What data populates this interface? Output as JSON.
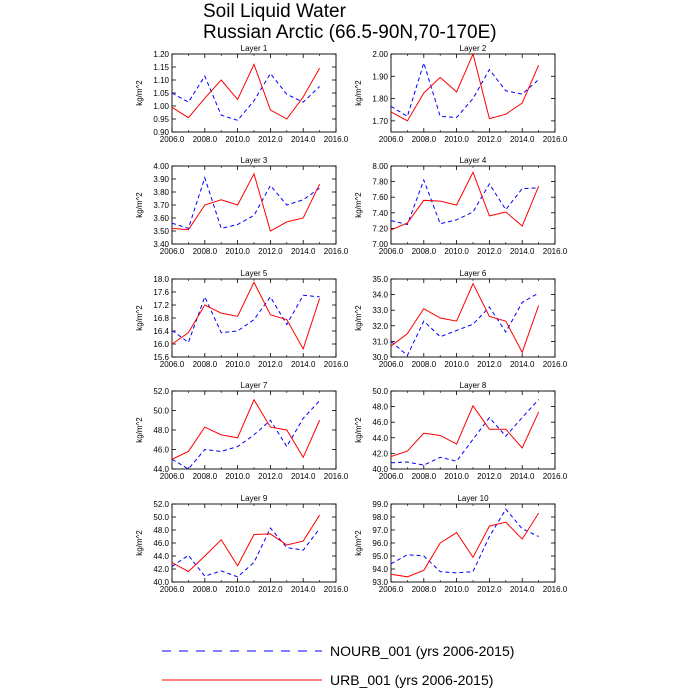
{
  "title": [
    "Soil Liquid Water",
    "Russian Arctic (66.5-90N,70-170E)"
  ],
  "legend": [
    {
      "label": "NOURB_001 (yrs 2006-2015)",
      "color": "#0000ff",
      "style": "dashed"
    },
    {
      "label": "URB_001 (yrs 2006-2015)",
      "color": "#ff0000",
      "style": "solid"
    }
  ],
  "chart_data": [
    {
      "type": "line",
      "title": "Layer 1",
      "ylabel": "kg/m^2",
      "x": [
        2006,
        2007,
        2008,
        2009,
        2010,
        2011,
        2012,
        2013,
        2014,
        2015
      ],
      "xlim": [
        2006,
        2016
      ],
      "xticks": [
        "2006.0",
        "2008.0",
        "2010.0",
        "2012.0",
        "2014.0",
        "2016.0"
      ],
      "ylim": [
        0.9,
        1.2
      ],
      "yticks": [
        "0.90",
        "0.95",
        "1.00",
        "1.05",
        "1.10",
        "1.15",
        "1.20"
      ],
      "series": [
        {
          "name": "NOURB_001 (yrs 2006-2015)",
          "values": [
            1.05,
            1.015,
            1.115,
            0.965,
            0.945,
            1.02,
            1.125,
            1.045,
            1.015,
            1.075
          ]
        },
        {
          "name": "URB_001 (yrs 2006-2015)",
          "values": [
            0.995,
            0.955,
            1.03,
            1.1,
            1.025,
            1.16,
            0.985,
            0.95,
            1.035,
            1.145
          ]
        }
      ]
    },
    {
      "type": "line",
      "title": "Layer 2",
      "ylabel": "kg/m^2",
      "x": [
        2006,
        2007,
        2008,
        2009,
        2010,
        2011,
        2012,
        2013,
        2014,
        2015
      ],
      "xlim": [
        2006,
        2016
      ],
      "xticks": [
        "2006.0",
        "2008.0",
        "2010.0",
        "2012.0",
        "2014.0",
        "2016.0"
      ],
      "ylim": [
        1.65,
        2.0
      ],
      "yticks": [
        "1.70",
        "1.80",
        "1.90",
        "2.00"
      ],
      "series": [
        {
          "name": "NOURB_001 (yrs 2006-2015)",
          "values": [
            1.765,
            1.72,
            1.96,
            1.72,
            1.715,
            1.8,
            1.93,
            1.835,
            1.82,
            1.885
          ]
        },
        {
          "name": "URB_001 (yrs 2006-2015)",
          "values": [
            1.74,
            1.7,
            1.825,
            1.895,
            1.83,
            2.0,
            1.71,
            1.73,
            1.78,
            1.95
          ]
        }
      ]
    },
    {
      "type": "line",
      "title": "Layer 3",
      "ylabel": "kg/m^2",
      "x": [
        2006,
        2007,
        2008,
        2009,
        2010,
        2011,
        2012,
        2013,
        2014,
        2015
      ],
      "xlim": [
        2006,
        2016
      ],
      "xticks": [
        "2006.0",
        "2008.0",
        "2010.0",
        "2012.0",
        "2014.0",
        "2016.0"
      ],
      "ylim": [
        3.4,
        4.0
      ],
      "yticks": [
        "3.40",
        "3.50",
        "3.60",
        "3.70",
        "3.80",
        "3.90",
        "4.00"
      ],
      "series": [
        {
          "name": "NOURB_001 (yrs 2006-2015)",
          "values": [
            3.56,
            3.52,
            3.91,
            3.52,
            3.55,
            3.62,
            3.85,
            3.7,
            3.74,
            3.83
          ]
        },
        {
          "name": "URB_001 (yrs 2006-2015)",
          "values": [
            3.52,
            3.51,
            3.7,
            3.74,
            3.7,
            3.94,
            3.5,
            3.57,
            3.6,
            3.86
          ]
        }
      ]
    },
    {
      "type": "line",
      "title": "Layer 4",
      "ylabel": "kg/m^2",
      "x": [
        2006,
        2007,
        2008,
        2009,
        2010,
        2011,
        2012,
        2013,
        2014,
        2015
      ],
      "xlim": [
        2006,
        2016
      ],
      "xticks": [
        "2006.0",
        "2008.0",
        "2010.0",
        "2012.0",
        "2014.0",
        "2016.0"
      ],
      "ylim": [
        7.0,
        8.0
      ],
      "yticks": [
        "7.00",
        "7.20",
        "7.40",
        "7.60",
        "7.80",
        "8.00"
      ],
      "series": [
        {
          "name": "NOURB_001 (yrs 2006-2015)",
          "values": [
            7.3,
            7.25,
            7.82,
            7.26,
            7.31,
            7.41,
            7.77,
            7.44,
            7.71,
            7.72
          ]
        },
        {
          "name": "URB_001 (yrs 2006-2015)",
          "values": [
            7.18,
            7.27,
            7.56,
            7.55,
            7.5,
            7.92,
            7.36,
            7.41,
            7.23,
            7.74
          ]
        }
      ]
    },
    {
      "type": "line",
      "title": "Layer 5",
      "ylabel": "kg/m^2",
      "x": [
        2006,
        2007,
        2008,
        2009,
        2010,
        2011,
        2012,
        2013,
        2014,
        2015
      ],
      "xlim": [
        2006,
        2016
      ],
      "xticks": [
        "2006.0",
        "2008.0",
        "2010.0",
        "2012.0",
        "2014.0",
        "2016.0"
      ],
      "ylim": [
        15.6,
        18.0
      ],
      "yticks": [
        "15.6",
        "16.0",
        "16.4",
        "16.8",
        "17.2",
        "17.6",
        "18.0"
      ],
      "series": [
        {
          "name": "NOURB_001 (yrs 2006-2015)",
          "values": [
            16.42,
            16.05,
            17.45,
            16.35,
            16.4,
            16.75,
            17.45,
            16.6,
            17.5,
            17.45
          ]
        },
        {
          "name": "URB_001 (yrs 2006-2015)",
          "values": [
            16.0,
            16.35,
            17.2,
            16.95,
            16.85,
            17.9,
            16.9,
            16.75,
            15.85,
            17.4
          ]
        }
      ]
    },
    {
      "type": "line",
      "title": "Layer 6",
      "ylabel": "kg/m^2",
      "x": [
        2006,
        2007,
        2008,
        2009,
        2010,
        2011,
        2012,
        2013,
        2014,
        2015
      ],
      "xlim": [
        2006,
        2016
      ],
      "xticks": [
        "2006.0",
        "2008.0",
        "2010.0",
        "2012.0",
        "2014.0",
        "2016.0"
      ],
      "ylim": [
        30.0,
        35.0
      ],
      "yticks": [
        "30.0",
        "31.0",
        "32.0",
        "33.0",
        "34.0",
        "35.0"
      ],
      "series": [
        {
          "name": "NOURB_001 (yrs 2006-2015)",
          "values": [
            31.0,
            30.1,
            32.3,
            31.3,
            31.7,
            32.1,
            33.2,
            31.6,
            33.5,
            34.1
          ]
        },
        {
          "name": "URB_001 (yrs 2006-2015)",
          "values": [
            30.7,
            31.5,
            33.1,
            32.5,
            32.3,
            34.7,
            32.6,
            32.3,
            30.3,
            33.3
          ]
        }
      ]
    },
    {
      "type": "line",
      "title": "Layer 7",
      "ylabel": "kg/m^2",
      "x": [
        2006,
        2007,
        2008,
        2009,
        2010,
        2011,
        2012,
        2013,
        2014,
        2015
      ],
      "xlim": [
        2006,
        2016
      ],
      "xticks": [
        "2006.0",
        "2008.0",
        "2010.0",
        "2012.0",
        "2014.0",
        "2016.0"
      ],
      "ylim": [
        44.0,
        52.0
      ],
      "yticks": [
        "44.0",
        "46.0",
        "48.0",
        "50.0",
        "52.0"
      ],
      "series": [
        {
          "name": "NOURB_001 (yrs 2006-2015)",
          "values": [
            45.0,
            44.0,
            46.0,
            45.8,
            46.3,
            47.5,
            49.0,
            46.3,
            49.2,
            51.0
          ]
        },
        {
          "name": "URB_001 (yrs 2006-2015)",
          "values": [
            45.0,
            45.8,
            48.3,
            47.5,
            47.2,
            51.1,
            48.3,
            48.0,
            45.2,
            49.0
          ]
        }
      ]
    },
    {
      "type": "line",
      "title": "Layer 8",
      "ylabel": "kg/m^2",
      "x": [
        2006,
        2007,
        2008,
        2009,
        2010,
        2011,
        2012,
        2013,
        2014,
        2015
      ],
      "xlim": [
        2006,
        2016
      ],
      "xticks": [
        "2006.0",
        "2008.0",
        "2010.0",
        "2012.0",
        "2014.0",
        "2016.0"
      ],
      "ylim": [
        40.0,
        50.0
      ],
      "yticks": [
        "40.0",
        "42.0",
        "44.0",
        "46.0",
        "48.0",
        "50.0"
      ],
      "series": [
        {
          "name": "NOURB_001 (yrs 2006-2015)",
          "values": [
            40.8,
            40.9,
            40.5,
            41.5,
            41.0,
            43.8,
            46.6,
            44.2,
            46.6,
            48.9
          ]
        },
        {
          "name": "URB_001 (yrs 2006-2015)",
          "values": [
            41.6,
            42.3,
            44.6,
            44.3,
            43.2,
            48.1,
            45.1,
            45.1,
            42.7,
            47.3
          ]
        }
      ]
    },
    {
      "type": "line",
      "title": "Layer 9",
      "ylabel": "kg/m^2",
      "x": [
        2006,
        2007,
        2008,
        2009,
        2010,
        2011,
        2012,
        2013,
        2014,
        2015
      ],
      "xlim": [
        2006,
        2016
      ],
      "xticks": [
        "2006.0",
        "2008.0",
        "2010.0",
        "2012.0",
        "2014.0",
        "2016.0"
      ],
      "ylim": [
        40.0,
        52.0
      ],
      "yticks": [
        "40.0",
        "42.0",
        "44.0",
        "46.0",
        "48.0",
        "50.0",
        "52.0"
      ],
      "series": [
        {
          "name": "NOURB_001 (yrs 2006-2015)",
          "values": [
            42.4,
            44.1,
            40.9,
            41.7,
            40.8,
            43.0,
            48.3,
            45.3,
            44.9,
            48.2
          ]
        },
        {
          "name": "URB_001 (yrs 2006-2015)",
          "values": [
            43.0,
            41.6,
            44.0,
            46.5,
            42.5,
            47.3,
            47.4,
            45.7,
            46.3,
            50.3
          ]
        }
      ]
    },
    {
      "type": "line",
      "title": "Layer 10",
      "ylabel": "kg/m^2",
      "x": [
        2006,
        2007,
        2008,
        2009,
        2010,
        2011,
        2012,
        2013,
        2014,
        2015
      ],
      "xlim": [
        2006,
        2016
      ],
      "xticks": [
        "2006.0",
        "2008.0",
        "2010.0",
        "2012.0",
        "2014.0",
        "2016.0"
      ],
      "ylim": [
        93.0,
        99.0
      ],
      "yticks": [
        "93.0",
        "94.0",
        "95.0",
        "96.0",
        "97.0",
        "98.0",
        "99.0"
      ],
      "series": [
        {
          "name": "NOURB_001 (yrs 2006-2015)",
          "values": [
            94.4,
            95.1,
            95.0,
            93.8,
            93.7,
            93.8,
            96.5,
            98.6,
            97.1,
            96.5
          ]
        },
        {
          "name": "URB_001 (yrs 2006-2015)",
          "values": [
            93.6,
            93.4,
            93.9,
            96.0,
            96.8,
            94.9,
            97.3,
            97.6,
            96.3,
            98.3
          ]
        }
      ]
    }
  ]
}
